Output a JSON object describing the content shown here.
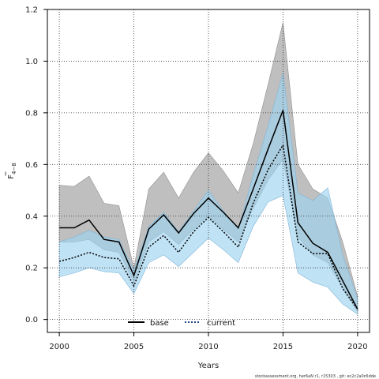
{
  "chart_data": {
    "type": "line",
    "xlabel": "Years",
    "ylabel_main": "F",
    "ylabel_sub": "4−8",
    "xlim": [
      1999.2,
      2020.8
    ],
    "ylim": [
      -0.05,
      1.2
    ],
    "x_ticks": [
      2000,
      2005,
      2010,
      2015,
      2020
    ],
    "y_ticks": [
      0.0,
      0.2,
      0.4,
      0.6,
      0.8,
      1.0,
      1.2
    ],
    "y_tick_labels": [
      "0.0",
      "0.2",
      "0.4",
      "0.6",
      "0.8",
      "1.0",
      "1.2"
    ],
    "grid": true,
    "legend_placement": "bottom-center",
    "years": [
      2000,
      2001,
      2002,
      2003,
      2004,
      2005,
      2006,
      2007,
      2008,
      2009,
      2010,
      2011,
      2012,
      2013,
      2014,
      2015,
      2016,
      2017,
      2018,
      2019,
      2020
    ],
    "series": [
      {
        "name": "base",
        "color": "#000000",
        "dash": "solid",
        "band_color": "#a9a9a9",
        "values": [
          0.355,
          0.355,
          0.385,
          0.31,
          0.3,
          0.17,
          0.35,
          0.405,
          0.335,
          0.41,
          0.47,
          0.415,
          0.355,
          0.505,
          0.66,
          0.81,
          0.375,
          0.295,
          0.26,
          0.15,
          0.04
        ],
        "upper": [
          0.52,
          0.515,
          0.555,
          0.45,
          0.44,
          0.2,
          0.505,
          0.57,
          0.47,
          0.57,
          0.645,
          0.575,
          0.49,
          0.68,
          0.91,
          1.15,
          0.6,
          0.505,
          0.47,
          0.3,
          0.09
        ],
        "lower": [
          0.3,
          0.3,
          0.31,
          0.27,
          0.26,
          0.145,
          0.3,
          0.34,
          0.29,
          0.35,
          0.4,
          0.35,
          0.3,
          0.43,
          0.54,
          0.62,
          0.32,
          0.25,
          0.22,
          0.12,
          0.03
        ]
      },
      {
        "name": "current",
        "color": "#000000",
        "dash": "dotted",
        "band_color": "#9dd2ef",
        "values": [
          0.225,
          0.24,
          0.26,
          0.24,
          0.235,
          0.13,
          0.28,
          0.325,
          0.26,
          0.34,
          0.395,
          0.34,
          0.28,
          0.45,
          0.58,
          0.675,
          0.3,
          0.255,
          0.255,
          0.12,
          0.04
        ],
        "upper": [
          0.3,
          0.32,
          0.345,
          0.32,
          0.31,
          0.19,
          0.36,
          0.415,
          0.34,
          0.42,
          0.5,
          0.42,
          0.35,
          0.56,
          0.75,
          0.955,
          0.49,
          0.46,
          0.51,
          0.25,
          0.08
        ],
        "lower": [
          0.165,
          0.18,
          0.2,
          0.185,
          0.18,
          0.1,
          0.22,
          0.25,
          0.205,
          0.26,
          0.315,
          0.27,
          0.22,
          0.36,
          0.455,
          0.48,
          0.18,
          0.145,
          0.125,
          0.06,
          0.02
        ]
      }
    ],
    "watermark": "stockassessment.org, her6aN  r1, r15303 , git: ec2c2a0c6dde"
  }
}
